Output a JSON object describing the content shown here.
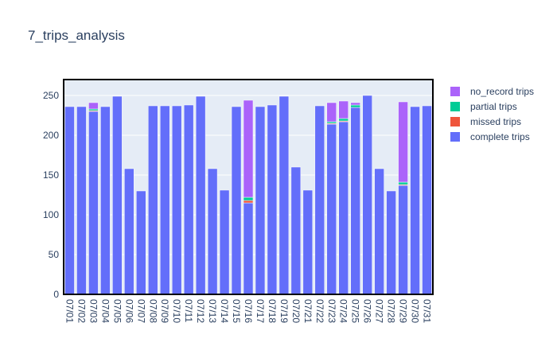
{
  "chart_data": {
    "type": "bar",
    "stacked": true,
    "title": "7_trips_analysis",
    "xlabel": "",
    "ylabel": "",
    "ylim": [
      0,
      270
    ],
    "yticks": [
      0,
      50,
      100,
      150,
      200,
      250
    ],
    "grid": true,
    "legend_position": "right",
    "categories": [
      "07/01",
      "07/02",
      "07/03",
      "07/04",
      "07/05",
      "07/06",
      "07/07",
      "07/08",
      "07/09",
      "07/10",
      "07/11",
      "07/12",
      "07/13",
      "07/14",
      "07/15",
      "07/16",
      "07/17",
      "07/18",
      "07/19",
      "07/20",
      "07/21",
      "07/22",
      "07/23",
      "07/24",
      "07/25",
      "07/26",
      "07/27",
      "07/28",
      "07/29",
      "07/30",
      "07/31"
    ],
    "series": [
      {
        "name": "complete trips",
        "color": "#636efa",
        "values": [
          236,
          236,
          230,
          236,
          249,
          158,
          130,
          237,
          237,
          237,
          238,
          249,
          158,
          131,
          236,
          115,
          236,
          238,
          249,
          160,
          131,
          237,
          214,
          217,
          235,
          250,
          158,
          130,
          137,
          236,
          237
        ]
      },
      {
        "name": "missed trips",
        "color": "#ef553b",
        "values": [
          0,
          0,
          1,
          0,
          0,
          0,
          0,
          0,
          0,
          0,
          0,
          0,
          0,
          0,
          0,
          3,
          0,
          0,
          0,
          0,
          0,
          0,
          1,
          1,
          0,
          0,
          0,
          0,
          1,
          0,
          0
        ]
      },
      {
        "name": "partial trips",
        "color": "#00cc96",
        "values": [
          0,
          0,
          2,
          0,
          0,
          0,
          0,
          0,
          0,
          0,
          0,
          0,
          0,
          0,
          0,
          4,
          0,
          0,
          0,
          0,
          0,
          0,
          2,
          3,
          3,
          0,
          0,
          0,
          3,
          0,
          0
        ]
      },
      {
        "name": "no_record trips",
        "color": "#ab63fa",
        "values": [
          0,
          0,
          8,
          0,
          0,
          0,
          0,
          0,
          0,
          0,
          0,
          0,
          0,
          0,
          0,
          122,
          0,
          0,
          0,
          0,
          0,
          0,
          24,
          22,
          3,
          0,
          0,
          0,
          101,
          0,
          0
        ]
      }
    ]
  }
}
